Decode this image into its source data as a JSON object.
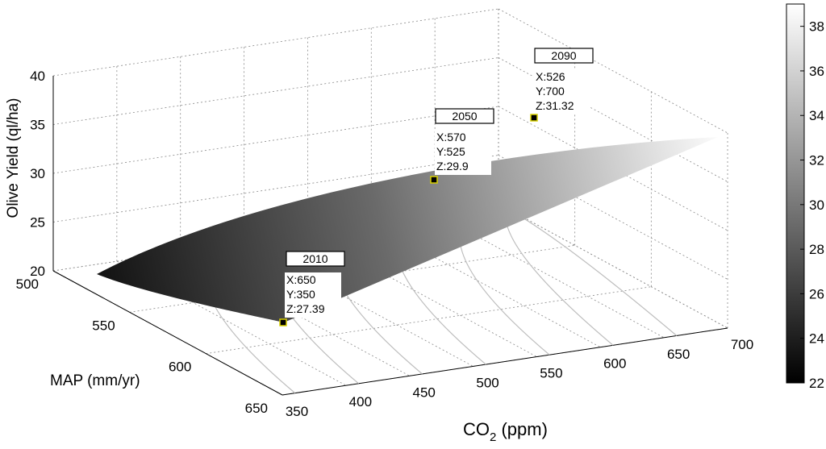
{
  "chart_data": {
    "type": "surface3d",
    "x_axis": {
      "label_main": "CO",
      "label_sub": "2",
      "label_unit": " (ppm)",
      "ticks": [
        "350",
        "400",
        "450",
        "500",
        "550",
        "600",
        "650",
        "700"
      ],
      "range": [
        350,
        700
      ]
    },
    "y_axis": {
      "label": "MAP (mm/yr)",
      "ticks": [
        "500",
        "550",
        "600",
        "650"
      ],
      "range": [
        500,
        650
      ]
    },
    "z_axis": {
      "label": "Olive Yield (ql/ha)",
      "ticks": [
        "20",
        "25",
        "30",
        "35",
        "40"
      ],
      "range": [
        20,
        40
      ]
    },
    "colorbar": {
      "ticks": [
        "22",
        "24",
        "26",
        "28",
        "30",
        "32",
        "34",
        "36",
        "38"
      ],
      "range": [
        22,
        39
      ],
      "colormap": "gray"
    },
    "grid": true,
    "surface_corners": [
      {
        "co2": 350,
        "map": 500,
        "yield": 22
      },
      {
        "co2": 700,
        "map": 500,
        "yield": 39
      },
      {
        "co2": 700,
        "map": 650,
        "yield": 34
      },
      {
        "co2": 350,
        "map": 650,
        "yield": 27
      }
    ],
    "datatips": [
      {
        "title": "2010",
        "x_text": "X:650",
        "y_text": "Y:350",
        "z_text": "Z:27.39",
        "map": 650,
        "co2": 350,
        "yield": 27.39
      },
      {
        "title": "2050",
        "x_text": "X:570",
        "y_text": "Y:525",
        "z_text": "Z:29.9",
        "map": 570,
        "co2": 525,
        "yield": 29.9
      },
      {
        "title": "2090",
        "x_text": "X:526",
        "y_text": "Y:700",
        "z_text": "Z:31.32",
        "map": 526,
        "co2": 700,
        "yield": 31.32
      }
    ]
  }
}
